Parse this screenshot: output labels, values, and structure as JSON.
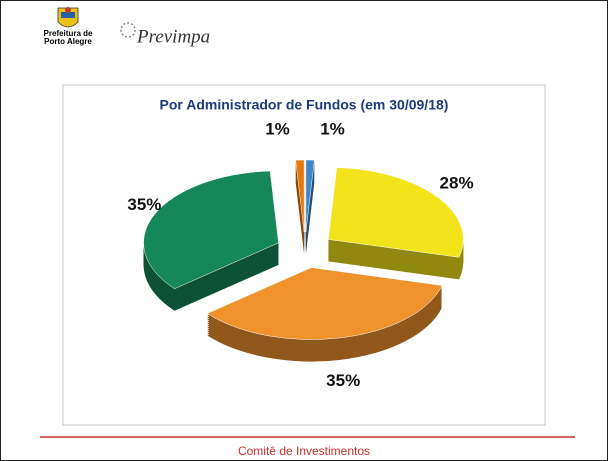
{
  "header": {
    "logo_line1": "Prefeitura de",
    "logo_line2": "Porto Alegre",
    "brand": "Previmpa"
  },
  "chart_data": {
    "type": "pie",
    "title": "Por Administrador de Fundos (em 30/09/18)",
    "categories": [
      null,
      null,
      null,
      null,
      null
    ],
    "values": [
      1,
      28,
      35,
      35,
      1
    ],
    "value_labels": [
      "1%",
      "28%",
      "35%",
      "35%",
      "1%"
    ],
    "colors": [
      "#3f86c6",
      "#f2e31b",
      "#f0922c",
      "#16875a",
      "#e3790f"
    ],
    "exploded": true
  },
  "footer": {
    "text": "Comitê de Investimentos"
  }
}
